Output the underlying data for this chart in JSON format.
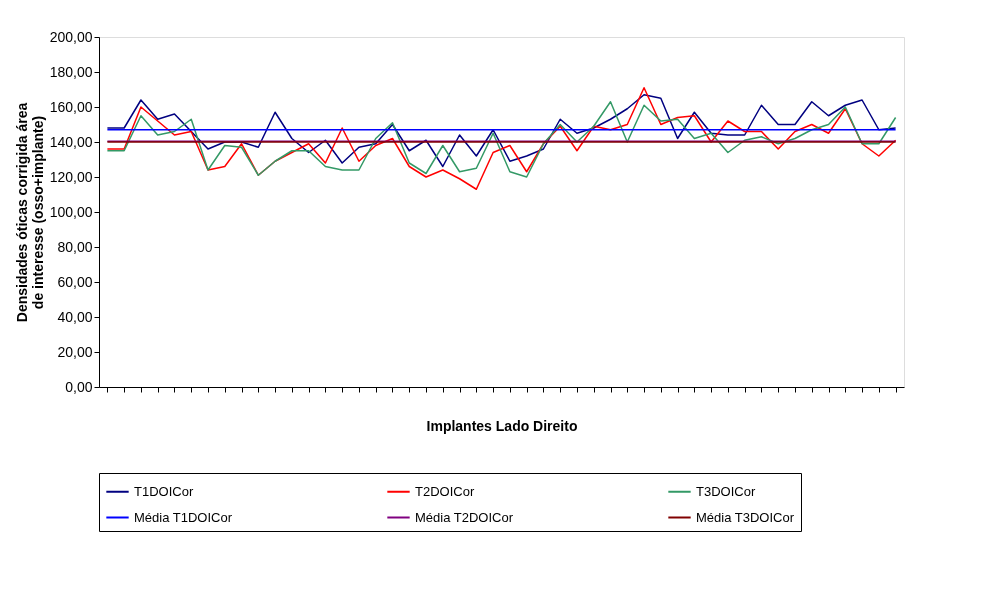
{
  "chart_data": {
    "type": "line",
    "xlabel": "Implantes Lado Direito",
    "ylabel": "Densidades óticas corrigida área\nde interesse (osso+implante)",
    "categories": [
      null,
      null,
      null,
      null,
      null,
      null,
      null,
      null,
      null,
      null,
      null,
      null,
      null,
      null,
      null,
      null,
      null,
      null,
      null,
      null,
      null,
      null,
      null,
      null,
      null,
      null,
      null,
      null,
      null,
      null,
      null,
      null,
      null,
      null,
      null,
      null,
      null,
      null,
      null,
      null,
      null,
      null,
      null,
      null,
      null,
      null,
      null,
      null
    ],
    "ylim": [
      0,
      200
    ],
    "yticks": [
      {
        "value": 0,
        "label": "0,00"
      },
      {
        "value": 20,
        "label": "20,00"
      },
      {
        "value": 40,
        "label": "40,00"
      },
      {
        "value": 60,
        "label": "60,00"
      },
      {
        "value": 80,
        "label": "80,00"
      },
      {
        "value": 100,
        "label": "100,00"
      },
      {
        "value": 120,
        "label": "120,00"
      },
      {
        "value": 140,
        "label": "140,00"
      },
      {
        "value": 160,
        "label": "160,00"
      },
      {
        "value": 180,
        "label": "180,00"
      },
      {
        "value": 200,
        "label": "200,00"
      }
    ],
    "grid": false,
    "legend": "bottom",
    "marker": "none",
    "line_style": "solid",
    "series": [
      {
        "name": "T1DOICor",
        "color": "#000080",
        "values": [
          148,
          148,
          164,
          153,
          156,
          146,
          136,
          140,
          140,
          137,
          157,
          142,
          134,
          141,
          128,
          137,
          139,
          150,
          135,
          141,
          126,
          144,
          132,
          147,
          129,
          132,
          136,
          153,
          145,
          148,
          153,
          159,
          167,
          165,
          142,
          157,
          145,
          144,
          144,
          161,
          150,
          150,
          163,
          155,
          161,
          164,
          147,
          148
        ]
      },
      {
        "name": "T2DOICor",
        "color": "#ff0000",
        "values": [
          136,
          136,
          160,
          152,
          144,
          146,
          124,
          126,
          139,
          121,
          129,
          134,
          139,
          128,
          148,
          129,
          138,
          142,
          126,
          120,
          124,
          119,
          113,
          134,
          138,
          123,
          139,
          149,
          135,
          149,
          147,
          150,
          171,
          150,
          154,
          155,
          140,
          152,
          146,
          146,
          136,
          146,
          150,
          145,
          159,
          139,
          132,
          141
        ]
      },
      {
        "name": "T3DOICor",
        "color": "#339966",
        "values": [
          135,
          135,
          155,
          144,
          146,
          153,
          124,
          138,
          137,
          121,
          129,
          135,
          135,
          126,
          124,
          124,
          142,
          151,
          128,
          122,
          138,
          123,
          125,
          145,
          123,
          120,
          139,
          150,
          140,
          149,
          163,
          140,
          161,
          152,
          153,
          142,
          145,
          134,
          141,
          143,
          139,
          142,
          147,
          150,
          160,
          139,
          139,
          154
        ]
      },
      {
        "name": "Média T1DOICor",
        "color": "#0000ff",
        "values": [
          147,
          147,
          147,
          147,
          147,
          147,
          147,
          147,
          147,
          147,
          147,
          147,
          147,
          147,
          147,
          147,
          147,
          147,
          147,
          147,
          147,
          147,
          147,
          147,
          147,
          147,
          147,
          147,
          147,
          147,
          147,
          147,
          147,
          147,
          147,
          147,
          147,
          147,
          147,
          147,
          147,
          147,
          147,
          147,
          147,
          147,
          147,
          147
        ]
      },
      {
        "name": "Média T2DOICor",
        "color": "#800080",
        "values": [
          140.5,
          140.5,
          140.5,
          140.5,
          140.5,
          140.5,
          140.5,
          140.5,
          140.5,
          140.5,
          140.5,
          140.5,
          140.5,
          140.5,
          140.5,
          140.5,
          140.5,
          140.5,
          140.5,
          140.5,
          140.5,
          140.5,
          140.5,
          140.5,
          140.5,
          140.5,
          140.5,
          140.5,
          140.5,
          140.5,
          140.5,
          140.5,
          140.5,
          140.5,
          140.5,
          140.5,
          140.5,
          140.5,
          140.5,
          140.5,
          140.5,
          140.5,
          140.5,
          140.5,
          140.5,
          140.5,
          140.5,
          140.5
        ]
      },
      {
        "name": "Média T3DOICor",
        "color": "#800000",
        "values": [
          140,
          140,
          140,
          140,
          140,
          140,
          140,
          140,
          140,
          140,
          140,
          140,
          140,
          140,
          140,
          140,
          140,
          140,
          140,
          140,
          140,
          140,
          140,
          140,
          140,
          140,
          140,
          140,
          140,
          140,
          140,
          140,
          140,
          140,
          140,
          140,
          140,
          140,
          140,
          140,
          140,
          140,
          140,
          140,
          140,
          140,
          140,
          140
        ]
      }
    ]
  }
}
